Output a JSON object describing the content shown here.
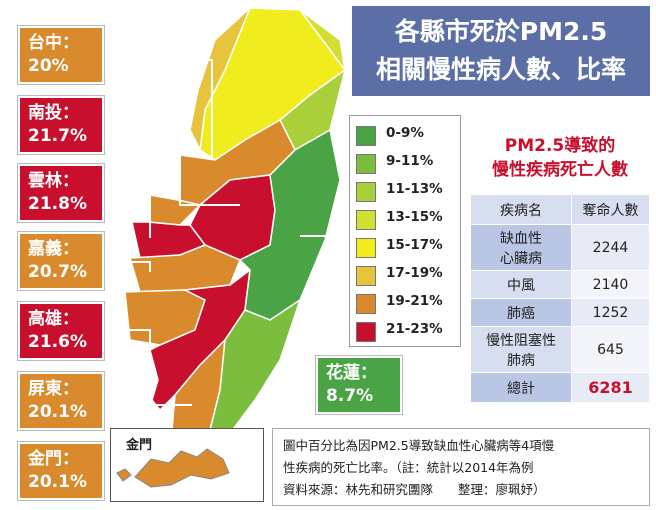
{
  "title": {
    "line1": "各縣市死於PM2.5",
    "line2": "相關慢性病人數、比率"
  },
  "regions": [
    {
      "name": "台中：",
      "pct": "20%",
      "color": "#d98a2c"
    },
    {
      "name": "南投：",
      "pct": "21.7%",
      "color": "#c8102e"
    },
    {
      "name": "雲林：",
      "pct": "21.8%",
      "color": "#c8102e"
    },
    {
      "name": "嘉義：",
      "pct": "20.7%",
      "color": "#d98a2c"
    },
    {
      "name": "高雄：",
      "pct": "21.6%",
      "color": "#c8102e"
    },
    {
      "name": "屏東：",
      "pct": "20.1%",
      "color": "#d98a2c"
    },
    {
      "name": "金門：",
      "pct": "20.1%",
      "color": "#d98a2c"
    },
    {
      "name": "花蓮：",
      "pct": "8.7%",
      "color": "#4aa345"
    }
  ],
  "legend": [
    {
      "label": "0-9%",
      "color": "#4aa345"
    },
    {
      "label": "9-11%",
      "color": "#7cbd3e"
    },
    {
      "label": "11-13%",
      "color": "#a9cf3a"
    },
    {
      "label": "13-15%",
      "color": "#d2df30"
    },
    {
      "label": "15-17%",
      "color": "#f1ec1d"
    },
    {
      "label": "17-19%",
      "color": "#e8c43d"
    },
    {
      "label": "19-21%",
      "color": "#d98a2c"
    },
    {
      "label": "21-23%",
      "color": "#c8102e"
    }
  ],
  "table": {
    "title1": "PM2.5導致的",
    "title2": "慢性疾病死亡人數",
    "header": [
      "疾病名",
      "奪命人數"
    ],
    "rows": [
      [
        "缺血性\n心臟病",
        "2244"
      ],
      [
        "中風",
        "2140"
      ],
      [
        "肺癌",
        "1252"
      ],
      [
        "慢性阻塞性\n肺病",
        "645"
      ]
    ],
    "total_label": "總計",
    "total_value": "6281"
  },
  "note": {
    "line1": "圖中百分比為因PM2.5導致缺血性心臟病等4項慢",
    "line2": "性疾病的死亡比率。（註：統計以2014年為例",
    "line3": "資料來源：林先和研究團隊　　整理：廖珮妤）"
  },
  "kinmen_label": "金門"
}
